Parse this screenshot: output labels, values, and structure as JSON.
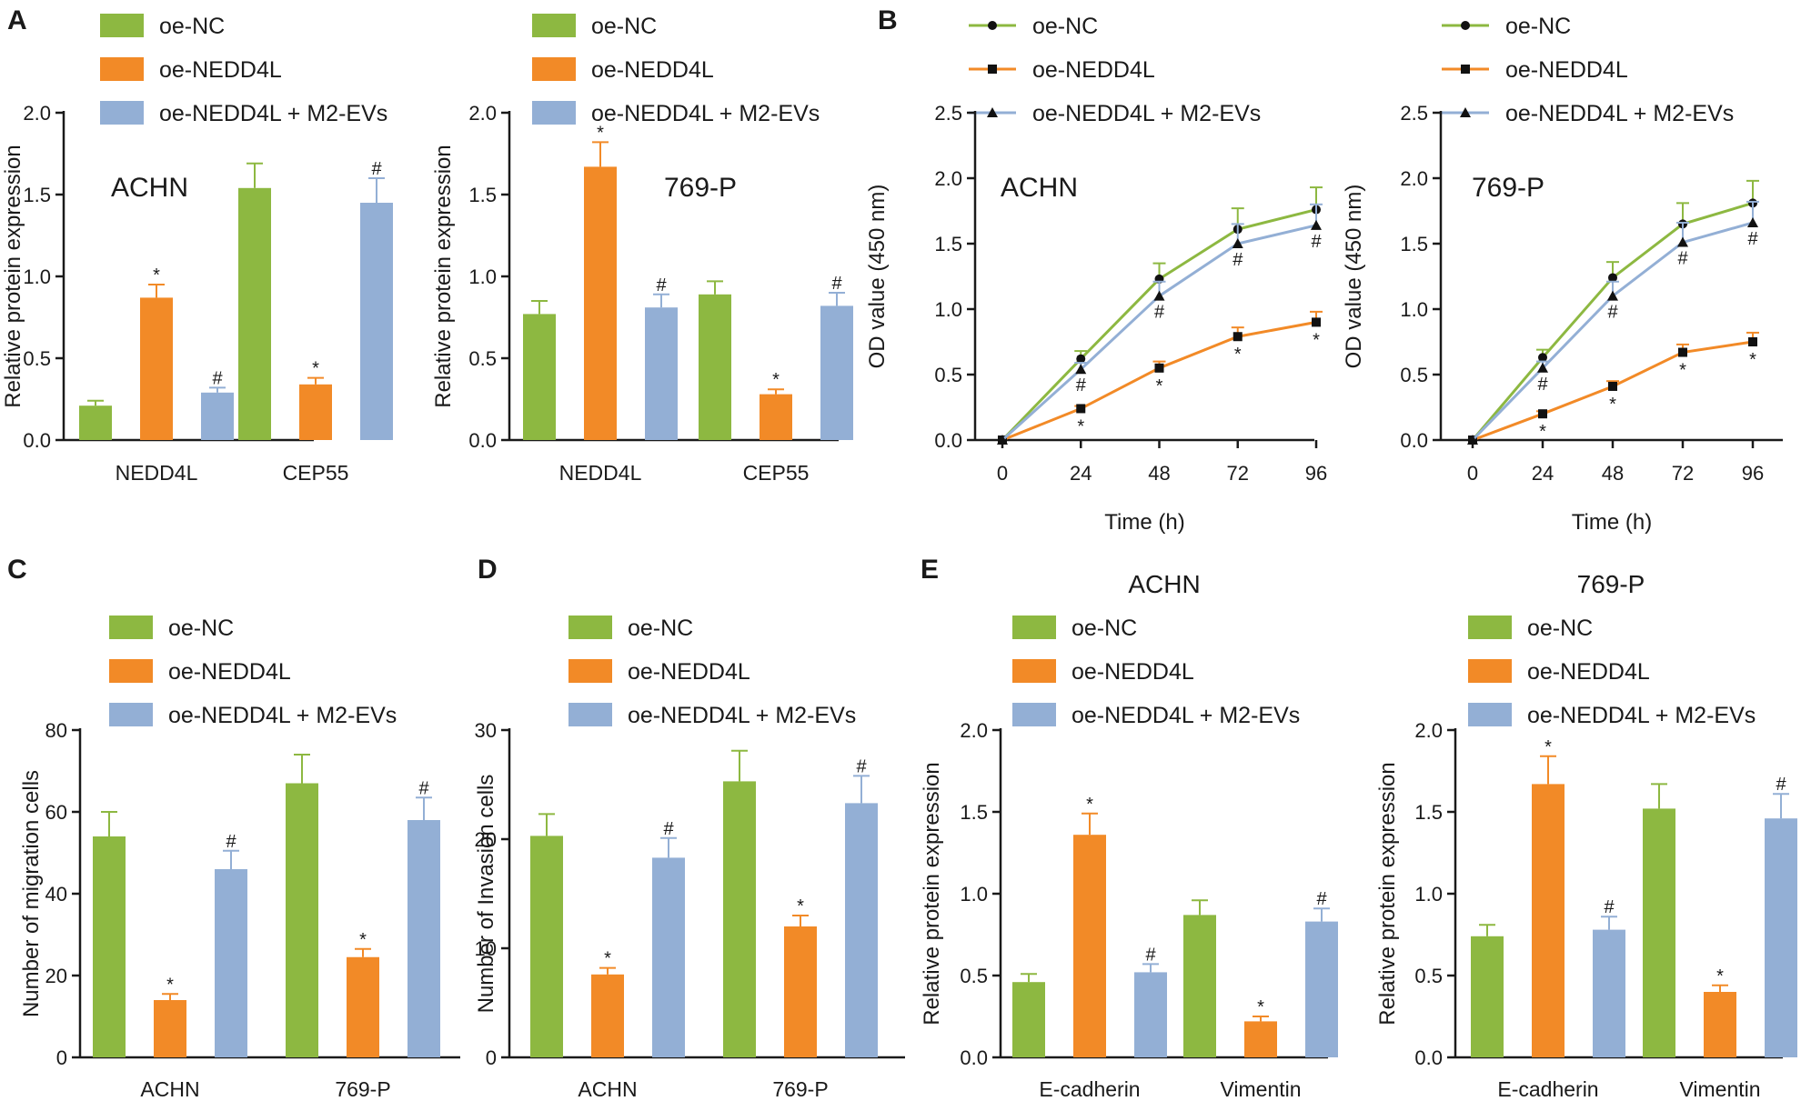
{
  "colors": {
    "oe_nc": "#8DB841",
    "oe_nedd4l": "#F28A27",
    "oe_nedd4l_m2": "#93AFD5",
    "axis": "#1a1a1a",
    "errbar_nc": "#8DB841",
    "errbar_nedd4l": "#F28A27",
    "errbar_m2": "#93AFD5"
  },
  "legend_labels": [
    "oe-NC",
    "oe-NEDD4L",
    "oe-NEDD4L + M2-EVs"
  ],
  "chart_data": [
    {
      "id": "A1",
      "panel_letter": "A",
      "type": "bar",
      "inner_label": "ACHN",
      "ylabel": "Relative protein expression",
      "xlabel": "",
      "ylim": [
        0,
        2.0
      ],
      "yticks": [
        "0.0",
        "0.5",
        "1.0",
        "1.5",
        "2.0"
      ],
      "ytick_values": [
        0,
        0.5,
        1.0,
        1.5,
        2.0
      ],
      "categories": [
        "NEDD4L",
        "CEP55"
      ],
      "series": [
        {
          "name": "oe-NC",
          "values": [
            0.21,
            1.54
          ],
          "errors": [
            0.03,
            0.15
          ],
          "marks": [
            "",
            ""
          ]
        },
        {
          "name": "oe-NEDD4L",
          "values": [
            0.87,
            0.34
          ],
          "errors": [
            0.08,
            0.04
          ],
          "marks": [
            "*",
            "*"
          ]
        },
        {
          "name": "oe-NEDD4L + M2-EVs",
          "values": [
            0.29,
            1.45
          ],
          "errors": [
            0.03,
            0.15
          ],
          "marks": [
            "#",
            "#"
          ]
        }
      ]
    },
    {
      "id": "A2",
      "panel_letter": "",
      "type": "bar",
      "inner_label": "769-P",
      "ylabel": "Relative protein expression",
      "xlabel": "",
      "ylim": [
        0,
        2.0
      ],
      "yticks": [
        "0.0",
        "0.5",
        "1.0",
        "1.5",
        "2.0"
      ],
      "ytick_values": [
        0,
        0.5,
        1.0,
        1.5,
        2.0
      ],
      "categories": [
        "NEDD4L",
        "CEP55"
      ],
      "series": [
        {
          "name": "oe-NC",
          "values": [
            0.77,
            0.89
          ],
          "errors": [
            0.08,
            0.08
          ],
          "marks": [
            "",
            ""
          ]
        },
        {
          "name": "oe-NEDD4L",
          "values": [
            1.67,
            0.28
          ],
          "errors": [
            0.15,
            0.03
          ],
          "marks": [
            "*",
            "*"
          ]
        },
        {
          "name": "oe-NEDD4L + M2-EVs",
          "values": [
            0.81,
            0.82
          ],
          "errors": [
            0.08,
            0.08
          ],
          "marks": [
            "#",
            "#"
          ]
        }
      ]
    },
    {
      "id": "B1",
      "panel_letter": "B",
      "type": "line",
      "inner_label": "ACHN",
      "ylabel": "OD value (450 nm)",
      "xlabel": "Time (h)",
      "ylim": [
        0,
        2.5
      ],
      "yticks": [
        "0.0",
        "0.5",
        "1.0",
        "1.5",
        "2.0",
        "2.5"
      ],
      "ytick_values": [
        0,
        0.5,
        1.0,
        1.5,
        2.0,
        2.5
      ],
      "x": [
        0,
        24,
        48,
        72,
        96
      ],
      "xticks": [
        "0",
        "24",
        "48",
        "72",
        "96"
      ],
      "series": [
        {
          "name": "oe-NC",
          "values": [
            0,
            0.62,
            1.23,
            1.61,
            1.76
          ],
          "errors": [
            0,
            0.06,
            0.12,
            0.16,
            0.17
          ],
          "marks": [
            "",
            "",
            "",
            "",
            ""
          ]
        },
        {
          "name": "oe-NEDD4L",
          "values": [
            0,
            0.24,
            0.55,
            0.79,
            0.9
          ],
          "errors": [
            0,
            0.02,
            0.05,
            0.07,
            0.08
          ],
          "marks": [
            "",
            "*",
            "*",
            "*",
            "*"
          ]
        },
        {
          "name": "oe-NEDD4L + M2-EVs",
          "values": [
            0,
            0.54,
            1.1,
            1.5,
            1.64
          ],
          "errors": [
            0,
            0.05,
            0.11,
            0.15,
            0.16
          ],
          "marks": [
            "",
            "#",
            "#",
            "#",
            "#"
          ]
        }
      ]
    },
    {
      "id": "B2",
      "panel_letter": "",
      "type": "line",
      "inner_label": "769-P",
      "ylabel": "OD value (450 nm)",
      "xlabel": "Time (h)",
      "ylim": [
        0,
        2.5
      ],
      "yticks": [
        "0.0",
        "0.5",
        "1.0",
        "1.5",
        "2.0",
        "2.5"
      ],
      "ytick_values": [
        0,
        0.5,
        1.0,
        1.5,
        2.0,
        2.5
      ],
      "x": [
        0,
        24,
        48,
        72,
        96
      ],
      "xticks": [
        "0",
        "24",
        "48",
        "72",
        "96"
      ],
      "series": [
        {
          "name": "oe-NC",
          "values": [
            0,
            0.63,
            1.24,
            1.65,
            1.81
          ],
          "errors": [
            0,
            0.06,
            0.12,
            0.16,
            0.17
          ],
          "marks": [
            "",
            "",
            "",
            "",
            ""
          ]
        },
        {
          "name": "oe-NEDD4L",
          "values": [
            0,
            0.2,
            0.41,
            0.67,
            0.75
          ],
          "errors": [
            0,
            0.02,
            0.04,
            0.06,
            0.07
          ],
          "marks": [
            "",
            "*",
            "*",
            "*",
            "*"
          ]
        },
        {
          "name": "oe-NEDD4L + M2-EVs",
          "values": [
            0,
            0.55,
            1.1,
            1.51,
            1.66
          ],
          "errors": [
            0,
            0.05,
            0.11,
            0.15,
            0.16
          ],
          "marks": [
            "",
            "#",
            "#",
            "#",
            "#"
          ]
        }
      ]
    },
    {
      "id": "C",
      "panel_letter": "C",
      "type": "bar",
      "inner_label": "",
      "ylabel": "Number of migration cells",
      "xlabel": "",
      "ylim": [
        0,
        80
      ],
      "yticks": [
        "0",
        "20",
        "40",
        "60",
        "80"
      ],
      "ytick_values": [
        0,
        20,
        40,
        60,
        80
      ],
      "categories": [
        "ACHN",
        "769-P"
      ],
      "series": [
        {
          "name": "oe-NC",
          "values": [
            54,
            67
          ],
          "errors": [
            6,
            7
          ],
          "marks": [
            "",
            ""
          ]
        },
        {
          "name": "oe-NEDD4L",
          "values": [
            14,
            24.5
          ],
          "errors": [
            1.5,
            2
          ],
          "marks": [
            "*",
            "*"
          ]
        },
        {
          "name": "oe-NEDD4L + M2-EVs",
          "values": [
            46,
            58
          ],
          "errors": [
            4.5,
            5.5
          ],
          "marks": [
            "#",
            "#"
          ]
        }
      ]
    },
    {
      "id": "D",
      "panel_letter": "D",
      "type": "bar",
      "inner_label": "",
      "ylabel": "Number of Invasion cells",
      "xlabel": "",
      "ylim": [
        0,
        30
      ],
      "yticks": [
        "0",
        "10",
        "20",
        "30"
      ],
      "ytick_values": [
        0,
        10,
        20,
        30
      ],
      "categories": [
        "ACHN",
        "769-P"
      ],
      "series": [
        {
          "name": "oe-NC",
          "values": [
            20.3,
            25.3
          ],
          "errors": [
            2,
            2.8
          ],
          "marks": [
            "",
            ""
          ]
        },
        {
          "name": "oe-NEDD4L",
          "values": [
            7.6,
            12
          ],
          "errors": [
            0.6,
            1
          ],
          "marks": [
            "*",
            "*"
          ]
        },
        {
          "name": "oe-NEDD4L + M2-EVs",
          "values": [
            18.3,
            23.3
          ],
          "errors": [
            1.8,
            2.5
          ],
          "marks": [
            "#",
            "#"
          ]
        }
      ]
    },
    {
      "id": "E1",
      "panel_letter": "E",
      "type": "bar",
      "inner_label": "ACHN",
      "ylabel": "Relative protein expression",
      "xlabel": "",
      "ylim": [
        0,
        2.0
      ],
      "yticks": [
        "0.0",
        "0.5",
        "1.0",
        "1.5",
        "2.0"
      ],
      "ytick_values": [
        0,
        0.5,
        1.0,
        1.5,
        2.0
      ],
      "categories": [
        "E-cadherin",
        "Vimentin"
      ],
      "series": [
        {
          "name": "oe-NC",
          "values": [
            0.46,
            0.87
          ],
          "errors": [
            0.05,
            0.09
          ],
          "marks": [
            "",
            ""
          ]
        },
        {
          "name": "oe-NEDD4L",
          "values": [
            1.36,
            0.22
          ],
          "errors": [
            0.13,
            0.03
          ],
          "marks": [
            "*",
            "*"
          ]
        },
        {
          "name": "oe-NEDD4L + M2-EVs",
          "values": [
            0.52,
            0.83
          ],
          "errors": [
            0.05,
            0.08
          ],
          "marks": [
            "#",
            "#"
          ]
        }
      ]
    },
    {
      "id": "E2",
      "panel_letter": "",
      "type": "bar",
      "inner_label": "769-P",
      "ylabel": "Relative protein expression",
      "xlabel": "",
      "ylim": [
        0,
        2.0
      ],
      "yticks": [
        "0.0",
        "0.5",
        "1.0",
        "1.5",
        "2.0"
      ],
      "ytick_values": [
        0,
        0.5,
        1.0,
        1.5,
        2.0
      ],
      "categories": [
        "E-cadherin",
        "Vimentin"
      ],
      "series": [
        {
          "name": "oe-NC",
          "values": [
            0.74,
            1.52
          ],
          "errors": [
            0.07,
            0.15
          ],
          "marks": [
            "",
            ""
          ]
        },
        {
          "name": "oe-NEDD4L",
          "values": [
            1.67,
            0.4
          ],
          "errors": [
            0.17,
            0.04
          ],
          "marks": [
            "*",
            "*"
          ]
        },
        {
          "name": "oe-NEDD4L + M2-EVs",
          "values": [
            0.78,
            1.46
          ],
          "errors": [
            0.08,
            0.15
          ],
          "marks": [
            "#",
            "#"
          ]
        }
      ]
    }
  ]
}
